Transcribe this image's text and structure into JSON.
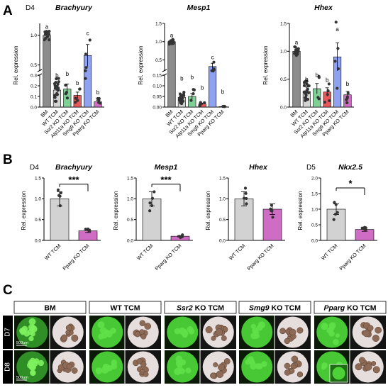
{
  "panels": {
    "a": "A",
    "b": "B",
    "c": "C"
  },
  "colors": {
    "BM": "#8c8c8c",
    "WT_TCM": "#d2d2d2",
    "Ssr2_KO": "#7fcf97",
    "Atp11a_KO": "#e8585a",
    "Smg9_KO": "#8fa2f2",
    "Pparg_KO": "#cf6cc3",
    "fluor_bg": "#48c835",
    "bright_bg": "#e6dedd",
    "row_label_bg": "#000000"
  },
  "chart_data": [
    {
      "id": "A-brachyury",
      "panel": "A",
      "day": "D4",
      "type": "bar",
      "title": "Brachyury",
      "ylabel": "Rel. expression",
      "ylim": [
        0,
        1.2
      ],
      "y_axis_broken": true,
      "break_between": [
        0.35,
        0.35
      ],
      "lower_ticks": [
        "0.0",
        "0.1",
        "0.2",
        "0.3"
      ],
      "upper_ticks": [
        "0.5",
        "1.0"
      ],
      "categories": [
        "BM",
        "WT TCM",
        "Ssr2 KO TCM",
        "Atp11a KO TCM",
        "Smg9 KO TCM",
        "Pparg KO TCM"
      ],
      "values": [
        1.0,
        0.16,
        0.17,
        0.11,
        0.66,
        0.05
      ],
      "sig_letters": [
        "a",
        "b",
        "b",
        "b",
        "c",
        "b"
      ]
    },
    {
      "id": "A-mesp1",
      "panel": "A",
      "type": "bar",
      "title": "Mesp1",
      "ylabel": "Rel. expression",
      "ylim": [
        0,
        1.5
      ],
      "y_axis_broken": true,
      "lower_ticks": [
        "0.00",
        "0.05",
        "0.10",
        "0.15"
      ],
      "upper_ticks": [
        "0.5",
        "1.0",
        "1.5"
      ],
      "categories": [
        "BM",
        "WT TCM",
        "Ssr2 KO TCM",
        "Atp11a KO TCM",
        "Smg9 KO TCM",
        "Pparg KO TCM"
      ],
      "values": [
        1.0,
        0.045,
        0.05,
        0.015,
        0.32,
        0.002
      ],
      "sig_letters": [
        "a",
        "b",
        "b",
        "b",
        "c",
        "b"
      ]
    },
    {
      "id": "A-hhex",
      "panel": "A",
      "type": "bar",
      "title": "Hhex",
      "ylabel": "Rel. expression",
      "ylim": [
        0,
        1.5
      ],
      "y_axis_broken": false,
      "ticks": [
        "0.0",
        "0.5",
        "1.0",
        "1.5"
      ],
      "categories": [
        "BM",
        "WT TCM",
        "Ssr2 KO TCM",
        "Atp11a KO TCM",
        "Smg9 KO TCM",
        "Pparg KO TCM"
      ],
      "values": [
        1.0,
        0.28,
        0.33,
        0.27,
        0.9,
        0.22
      ],
      "sig_letters": [
        "a",
        "b",
        "b",
        "b",
        "a",
        "b"
      ]
    },
    {
      "id": "B-brachyury",
      "panel": "B",
      "day": "D4",
      "type": "bar",
      "title": "Brachyury",
      "ylabel": "Rel. expression",
      "ylim": [
        0,
        1.5
      ],
      "ticks": [
        "0.0",
        "0.5",
        "1.0",
        "1.5"
      ],
      "categories": [
        "WT TCM",
        "Pparg KO TCM"
      ],
      "values": [
        1.0,
        0.23
      ],
      "significance": "***"
    },
    {
      "id": "B-mesp1",
      "panel": "B",
      "type": "bar",
      "title": "Mesp1",
      "ylabel": "Rel. expression",
      "ylim": [
        0,
        1.5
      ],
      "ticks": [
        "0.0",
        "0.5",
        "1.0",
        "1.5"
      ],
      "categories": [
        "WT TCM",
        "Pparg KO TCM"
      ],
      "values": [
        1.0,
        0.1
      ],
      "significance": "***"
    },
    {
      "id": "B-hhex",
      "panel": "B",
      "type": "bar",
      "title": "Hhex",
      "ylabel": "Rel. expression",
      "ylim": [
        0,
        1.5
      ],
      "ticks": [
        "0.0",
        "0.5",
        "1.0",
        "1.5"
      ],
      "categories": [
        "WT TCM",
        "Pparg KO TCM"
      ],
      "values": [
        1.0,
        0.75
      ],
      "significance": ""
    },
    {
      "id": "B-nkx25",
      "panel": "B",
      "day": "D5",
      "type": "bar",
      "title": "Nkx2.5",
      "ylabel": "Rel. expression",
      "ylim": [
        0,
        2.0
      ],
      "ticks": [
        "0.0",
        "0.5",
        "1.0",
        "1.5",
        "2.0"
      ],
      "categories": [
        "WT TCM",
        "Pparg KO TCM"
      ],
      "values": [
        1.0,
        0.35
      ],
      "significance": "*"
    }
  ],
  "panel_c": {
    "rows": [
      "D7",
      "D8"
    ],
    "columns": [
      {
        "gene": "",
        "rest": "BM"
      },
      {
        "gene": "",
        "rest": "WT TCM"
      },
      {
        "gene": "Ssr2",
        "rest": " KO TCM"
      },
      {
        "gene": "Smg9",
        "rest": " KO TCM"
      },
      {
        "gene": "Pparg",
        "rest": " KO TCM"
      }
    ],
    "scale_bar": "500um"
  }
}
